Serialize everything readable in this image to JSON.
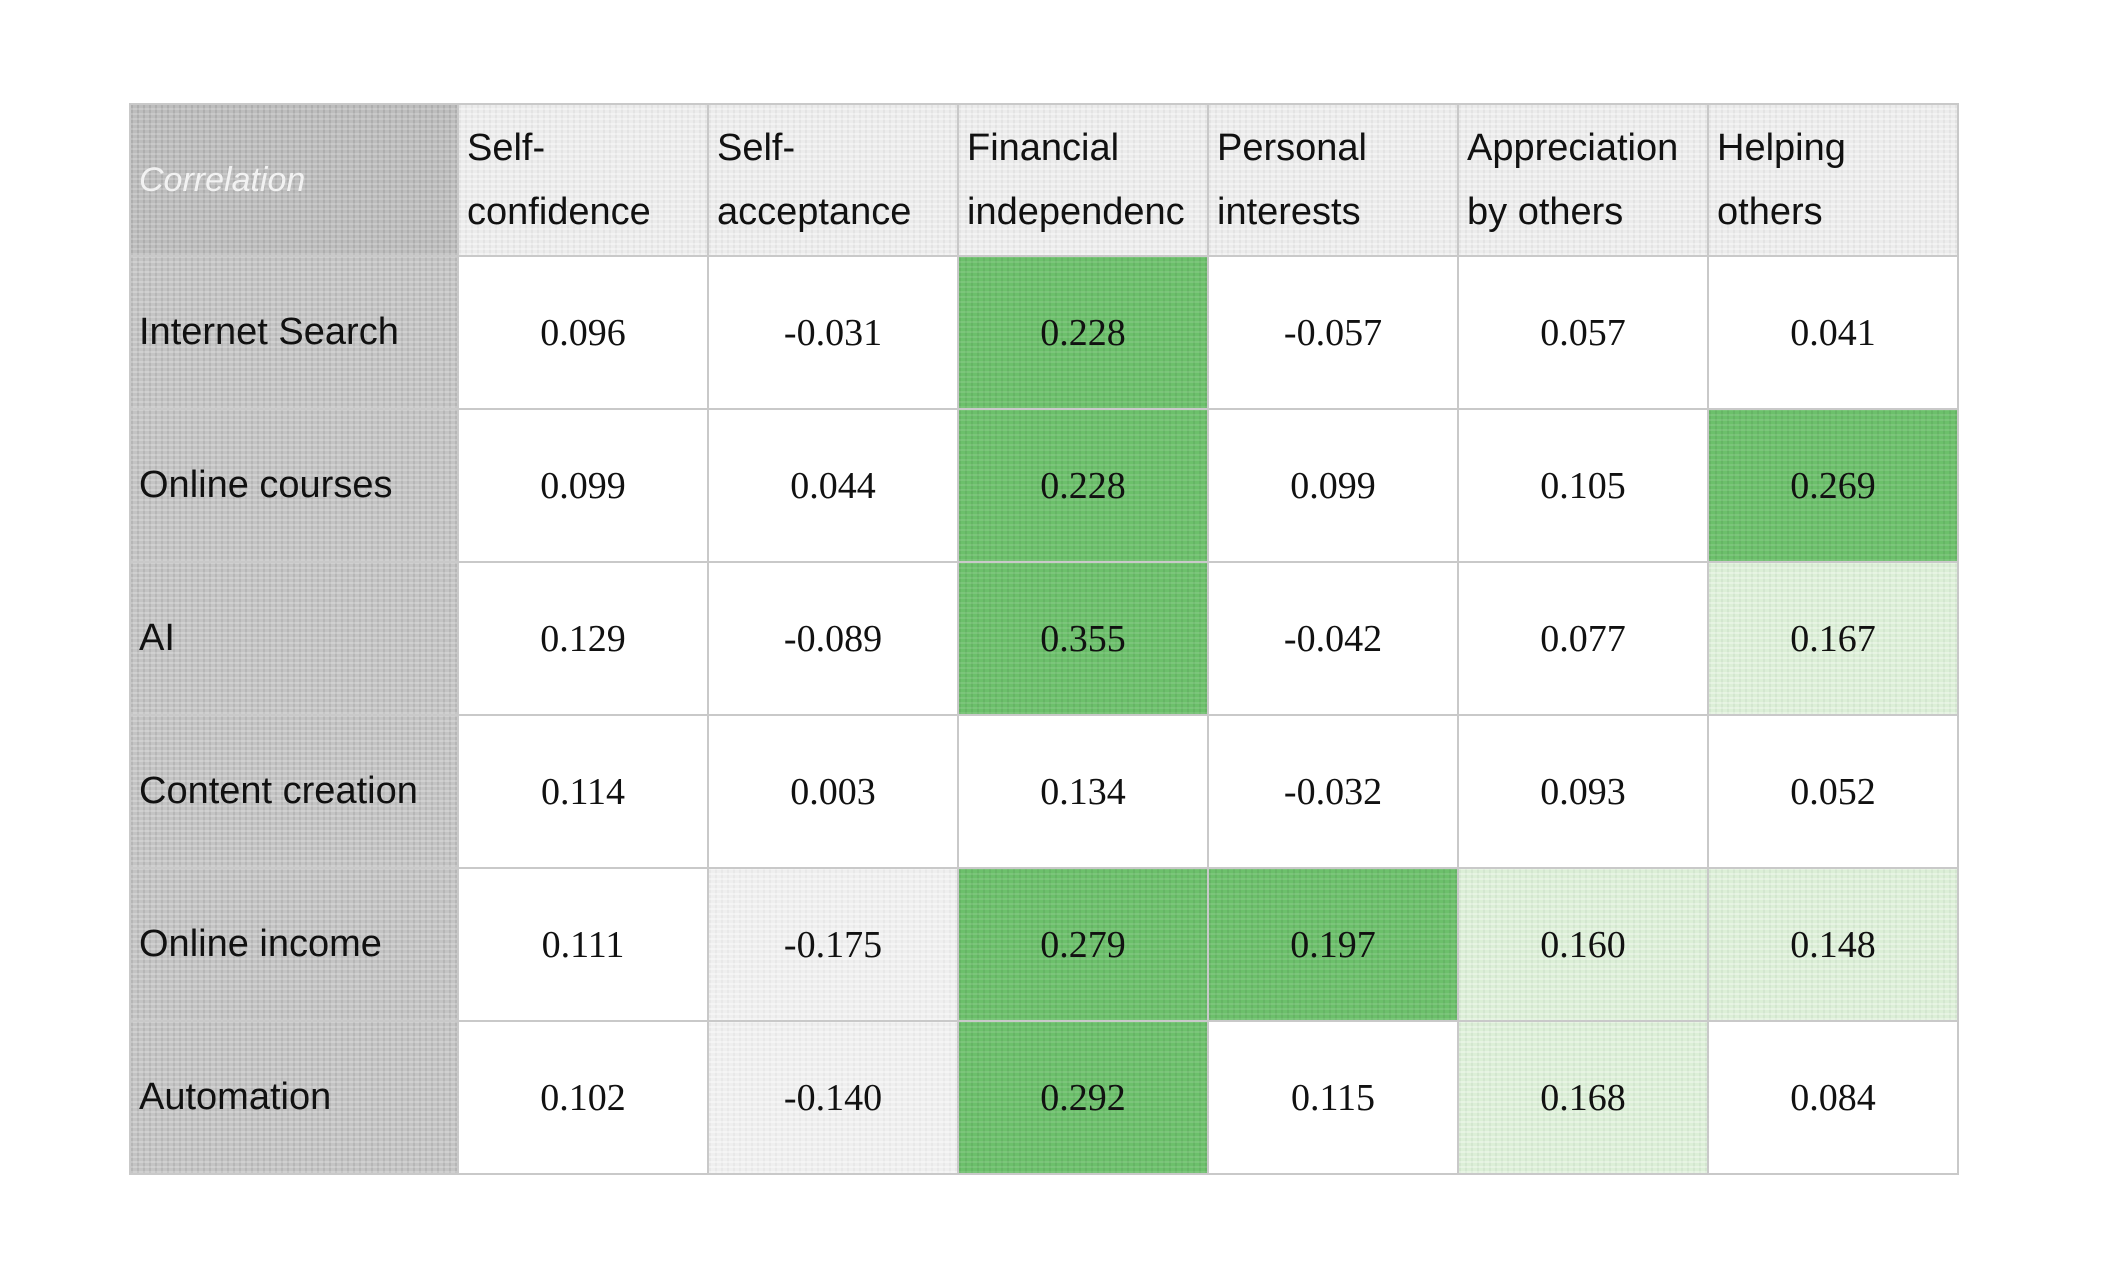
{
  "chart_data": {
    "type": "table",
    "corner_label": "Correlation",
    "columns": [
      {
        "lines": [
          "Self-",
          "confidence"
        ]
      },
      {
        "lines": [
          "Self-",
          "acceptance"
        ]
      },
      {
        "lines": [
          "Financial",
          "independenc"
        ]
      },
      {
        "lines": [
          "Personal",
          "interests"
        ]
      },
      {
        "lines": [
          "Appreciation",
          "by others"
        ]
      },
      {
        "lines": [
          "Helping",
          "others"
        ]
      }
    ],
    "rows": [
      {
        "label": "Internet Search",
        "values": [
          "0.096",
          "-0.031",
          "0.228",
          "-0.057",
          "0.057",
          "0.041"
        ],
        "shading": [
          "none",
          "none",
          "strong",
          "none",
          "none",
          "none"
        ]
      },
      {
        "label": "Online courses",
        "values": [
          "0.099",
          "0.044",
          "0.228",
          "0.099",
          "0.105",
          "0.269"
        ],
        "shading": [
          "none",
          "none",
          "strong",
          "none",
          "none",
          "strong"
        ]
      },
      {
        "label": "AI",
        "values": [
          "0.129",
          "-0.089",
          "0.355",
          "-0.042",
          "0.077",
          "0.167"
        ],
        "shading": [
          "none",
          "none",
          "strong",
          "none",
          "none",
          "light"
        ]
      },
      {
        "label": "Content creation",
        "values": [
          "0.114",
          "0.003",
          "0.134",
          "-0.032",
          "0.093",
          "0.052"
        ],
        "shading": [
          "none",
          "none",
          "none",
          "none",
          "none",
          "none"
        ]
      },
      {
        "label": "Online income",
        "values": [
          "0.111",
          "-0.175",
          "0.279",
          "0.197",
          "0.160",
          "0.148"
        ],
        "shading": [
          "none",
          "grey",
          "strong",
          "strong",
          "light",
          "light"
        ]
      },
      {
        "label": "Automation",
        "values": [
          "0.102",
          "-0.140",
          "0.292",
          "0.115",
          "0.168",
          "0.084"
        ],
        "shading": [
          "none",
          "grey",
          "strong",
          "none",
          "light",
          "none"
        ]
      }
    ],
    "colors": {
      "strong": "#6cc06b",
      "light": "#dcefd7",
      "grey": "#efefef",
      "none": "#ffffff",
      "row_header": "#c4c4c4",
      "column_header": "#ececec"
    }
  }
}
